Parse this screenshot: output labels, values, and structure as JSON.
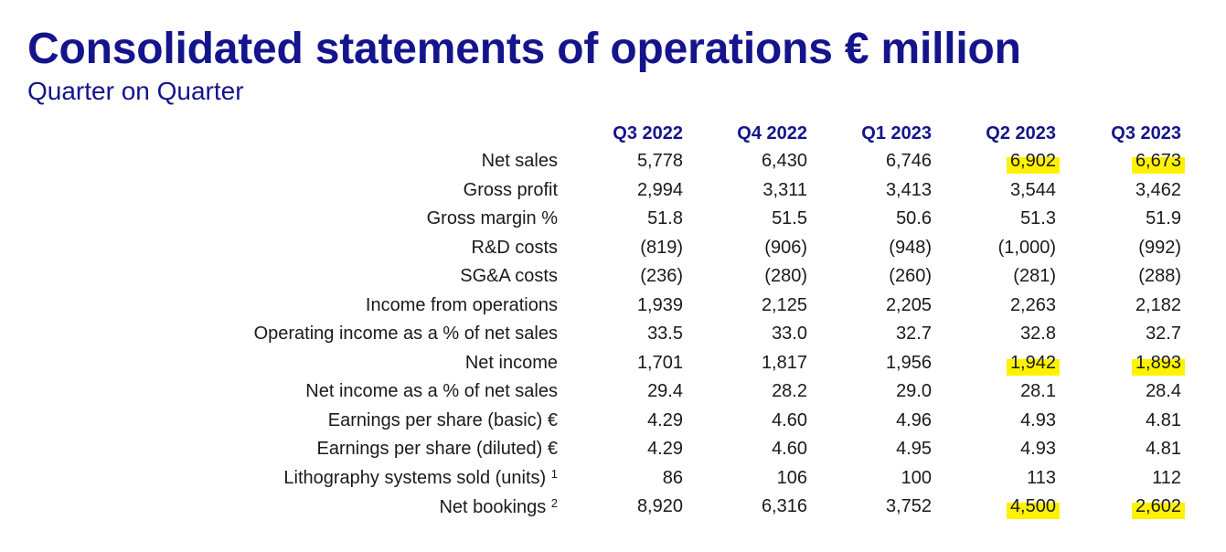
{
  "title": "Consolidated statements of operations € million",
  "subtitle": "Quarter on Quarter",
  "table": {
    "columns": [
      "Q3 2022",
      "Q4 2022",
      "Q1 2023",
      "Q2 2023",
      "Q3 2023"
    ],
    "rows": [
      {
        "label": "Net sales",
        "footnote": "",
        "values": [
          "5,778",
          "6,430",
          "6,746",
          "6,902",
          "6,673"
        ],
        "highlight": [
          false,
          false,
          false,
          true,
          true
        ]
      },
      {
        "label": "Gross profit",
        "footnote": "",
        "values": [
          "2,994",
          "3,311",
          "3,413",
          "3,544",
          "3,462"
        ],
        "highlight": [
          false,
          false,
          false,
          false,
          false
        ]
      },
      {
        "label": "Gross margin %",
        "footnote": "",
        "values": [
          "51.8",
          "51.5",
          "50.6",
          "51.3",
          "51.9"
        ],
        "highlight": [
          false,
          false,
          false,
          false,
          false
        ]
      },
      {
        "label": "R&D costs",
        "footnote": "",
        "values": [
          "(819)",
          "(906)",
          "(948)",
          "(1,000)",
          "(992)"
        ],
        "highlight": [
          false,
          false,
          false,
          false,
          false
        ]
      },
      {
        "label": "SG&A costs",
        "footnote": "",
        "values": [
          "(236)",
          "(280)",
          "(260)",
          "(281)",
          "(288)"
        ],
        "highlight": [
          false,
          false,
          false,
          false,
          false
        ]
      },
      {
        "label": "Income from operations",
        "footnote": "",
        "values": [
          "1,939",
          "2,125",
          "2,205",
          "2,263",
          "2,182"
        ],
        "highlight": [
          false,
          false,
          false,
          false,
          false
        ]
      },
      {
        "label": "Operating income as a % of net sales",
        "footnote": "",
        "values": [
          "33.5",
          "33.0",
          "32.7",
          "32.8",
          "32.7"
        ],
        "highlight": [
          false,
          false,
          false,
          false,
          false
        ]
      },
      {
        "label": "Net income",
        "footnote": "",
        "values": [
          "1,701",
          "1,817",
          "1,956",
          "1,942",
          "1,893"
        ],
        "highlight": [
          false,
          false,
          false,
          true,
          true
        ]
      },
      {
        "label": "Net income as a % of net sales",
        "footnote": "",
        "values": [
          "29.4",
          "28.2",
          "29.0",
          "28.1",
          "28.4"
        ],
        "highlight": [
          false,
          false,
          false,
          false,
          false
        ]
      },
      {
        "label": "Earnings per share (basic) €",
        "footnote": "",
        "values": [
          "4.29",
          "4.60",
          "4.96",
          "4.93",
          "4.81"
        ],
        "highlight": [
          false,
          false,
          false,
          false,
          false
        ]
      },
      {
        "label": "Earnings per share (diluted) €",
        "footnote": "",
        "values": [
          "4.29",
          "4.60",
          "4.95",
          "4.93",
          "4.81"
        ],
        "highlight": [
          false,
          false,
          false,
          false,
          false
        ]
      },
      {
        "label": "Lithography systems sold (units)",
        "footnote": "1",
        "values": [
          "86",
          "106",
          "100",
          "113",
          "112"
        ],
        "highlight": [
          false,
          false,
          false,
          false,
          false
        ]
      },
      {
        "label": "Net bookings",
        "footnote": "2",
        "values": [
          "8,920",
          "6,316",
          "3,752",
          "4,500",
          "2,602"
        ],
        "highlight": [
          false,
          false,
          false,
          true,
          true
        ]
      }
    ]
  },
  "colors": {
    "title": "#14148c",
    "header": "#14148c",
    "text": "#1a1a1a",
    "highlight": "#fff200"
  }
}
